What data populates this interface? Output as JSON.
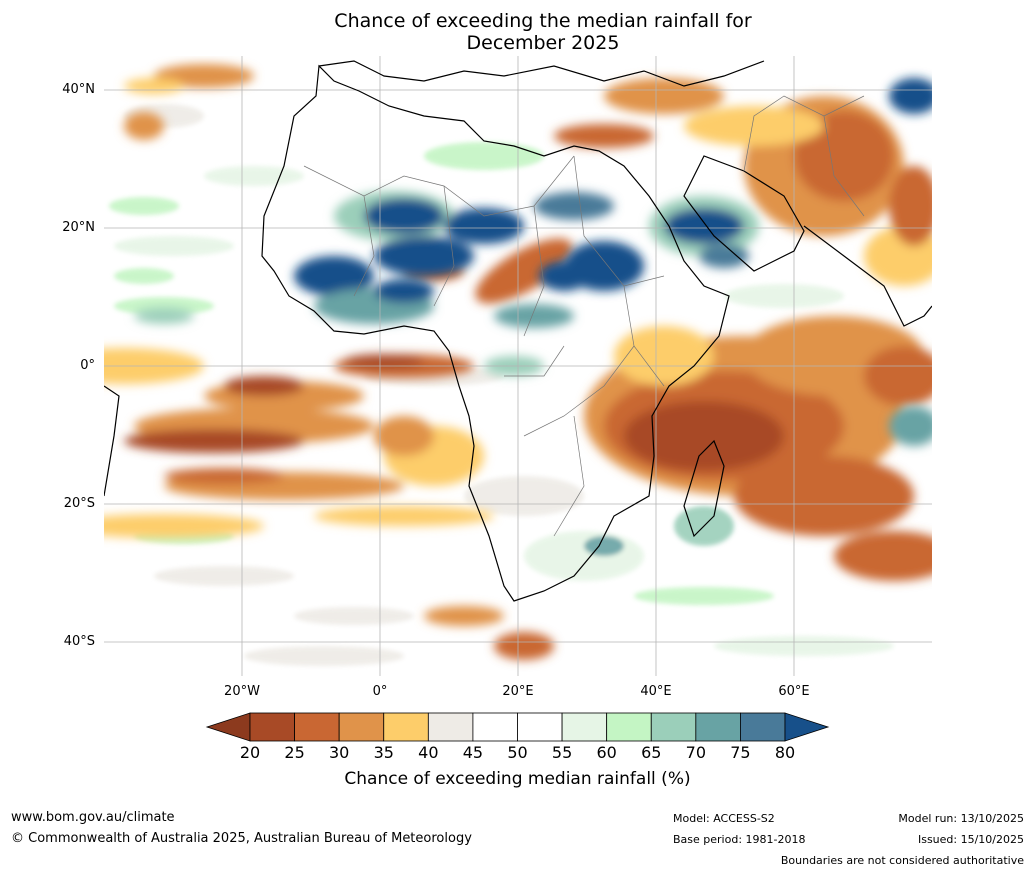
{
  "title": {
    "line1": "Chance of exceeding the median rainfall for",
    "line2": "December 2025"
  },
  "map": {
    "region": "Africa",
    "lat_labels": [
      "40°N",
      "20°N",
      "0°",
      "20°S",
      "40°S"
    ],
    "lon_labels": [
      "20°W",
      "0°",
      "20°E",
      "40°E",
      "60°E"
    ],
    "lat_range": [
      -45,
      45
    ],
    "lon_range": [
      -40,
      80
    ],
    "gridlines": true
  },
  "colorbar": {
    "ticks": [
      "20",
      "25",
      "30",
      "35",
      "40",
      "45",
      "50",
      "55",
      "60",
      "65",
      "70",
      "75",
      "80"
    ],
    "colors": [
      "#8c3a1e",
      "#a84a26",
      "#c96733",
      "#e0934a",
      "#fdcd6a",
      "#eeebe6",
      "#ffffff",
      "#ffffff",
      "#e6f5e6",
      "#c4f5c4",
      "#9bcfba",
      "#68a3a4",
      "#497a99",
      "#17508a"
    ],
    "label": "Chance of exceeding median rainfall (%)"
  },
  "footer": {
    "website": "www.bom.gov.au/climate",
    "copyright": "© Commonwealth of Australia 2025, Australian Bureau of Meteorology",
    "model": "Model: ACCESS-S2",
    "base_period": "Base period: 1981-2018",
    "model_run": "Model run: 13/10/2025",
    "issued": "Issued: 15/10/2025",
    "disclaimer": "Boundaries are not considered authoritative"
  }
}
